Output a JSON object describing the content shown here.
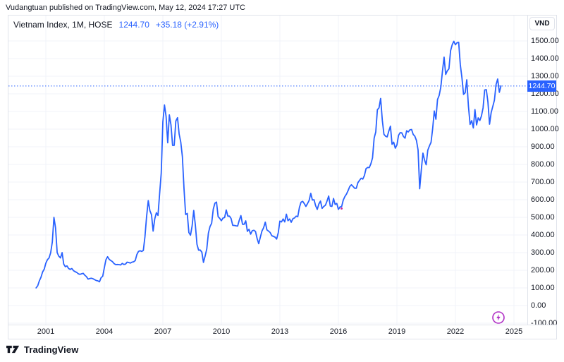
{
  "attribution": "Vudangtuan published on TradingView.com, May 12, 2024 17:27 UTC",
  "legend": {
    "title": "Vietnam Index, 1M, HOSE",
    "last_price": "1244.70",
    "change": "+35.18 (+2.91%)"
  },
  "currency_button_label": "VND",
  "price_axis": {
    "labels": [
      "1500.00",
      "1400.00",
      "1300.00",
      "1200.00",
      "1100.00",
      "1000.00",
      "900.00",
      "800.00",
      "700.00",
      "600.00",
      "500.00",
      "400.00",
      "300.00",
      "200.00",
      "100.00",
      "0.00",
      "-100.00"
    ],
    "current_price_label": "1244.70"
  },
  "time_axis": {
    "labels": [
      "2001",
      "2004",
      "2007",
      "2010",
      "2013",
      "2016",
      "2019",
      "2022",
      "2025"
    ]
  },
  "footer": {
    "brand": "TradingView"
  },
  "icons": {
    "flash": "lightning-icon",
    "logo": "tradingview-logo-icon"
  },
  "colors": {
    "accent_blue": "#2962FF",
    "text_dark": "#131722",
    "grid": "#F0F3FA",
    "border": "#E0E3EB",
    "flash_purple": "#B02FC5",
    "marker_pink": "#CC2B9E"
  },
  "chart_data": {
    "type": "line",
    "title": "Vietnam Index, 1M, HOSE",
    "ylabel": "VND",
    "legend_position": "top-left",
    "grid": true,
    "start": "2000-07",
    "interval": "1M",
    "x_tick_years": [
      2001,
      2004,
      2007,
      2010,
      2013,
      2016,
      2019,
      2022,
      2025
    ],
    "y_range": [
      -100,
      1500
    ],
    "y_step": 100,
    "current_price": 1244.7,
    "series": [
      {
        "name": "Vietnam Index",
        "values": [
          100,
          112,
          140,
          160,
          190,
          206,
          240,
          260,
          270,
          300,
          360,
          500,
          440,
          300,
          280,
          270,
          300,
          235,
          220,
          225,
          210,
          205,
          210,
          198,
          192,
          188,
          180,
          177,
          180,
          183,
          172,
          164,
          150,
          153,
          155,
          152,
          147,
          142,
          140,
          135,
          158,
          166,
          215,
          260,
          277,
          262,
          255,
          249,
          238,
          232,
          233,
          232,
          230,
          239,
          233,
          235,
          246,
          244,
          241,
          246,
          248,
          255,
          289,
          307,
          311,
          307,
          312,
          390,
          503,
          595,
          538,
          515,
          422,
          491,
          526,
          511,
          633,
          751,
          1041,
          1137,
          1071,
          923,
          1081,
          1024,
          908,
          908,
          1046,
          1065,
          972,
          927,
          844,
          663,
          516,
          522,
          414,
          399,
          451,
          539,
          456,
          347,
          314,
          315,
          303,
          245,
          280,
          321,
          411,
          448,
          466,
          546,
          580,
          587,
          504,
          494,
          481,
          496,
          499,
          542,
          507,
          507,
          493,
          455,
          454,
          452,
          451,
          484,
          510,
          461,
          461,
          480,
          421,
          432,
          405,
          424,
          427,
          420,
          380,
          351,
          388,
          423,
          441,
          473,
          429,
          422,
          414,
          396,
          392,
          388,
          377,
          413,
          479,
          474,
          491,
          474,
          518,
          481,
          491,
          472,
          492,
          497,
          507,
          504,
          556,
          586,
          591,
          578,
          562,
          578,
          596,
          636,
          598,
          600,
          566,
          545,
          576,
          592,
          551,
          562,
          569,
          593,
          621,
          564,
          562,
          607,
          573,
          579,
          545,
          559,
          561,
          598,
          618,
          632,
          652,
          675,
          685,
          675,
          665,
          665,
          697,
          710,
          722,
          717,
          737,
          776,
          783,
          782,
          804,
          837,
          949,
          984,
          1110,
          1121,
          1174,
          1050,
          971,
          960,
          956,
          989,
          1017,
          914,
          926,
          892,
          910,
          965,
          980,
          979,
          959,
          949,
          991,
          984,
          996,
          998,
          970,
          960,
          936,
          882,
          662,
          769,
          864,
          825,
          798,
          881,
          905,
          925,
          1003,
          1103,
          1056,
          1168,
          1191,
          1239,
          1328,
          1408,
          1310,
          1331,
          1342,
          1444,
          1478,
          1498,
          1478,
          1490,
          1492,
          1366,
          1292,
          1197,
          1206,
          1280,
          1132,
          1027,
          1048,
          1007,
          1111,
          1024,
          1064,
          1049,
          1075,
          1120,
          1222,
          1224,
          1154,
          1028,
          1094,
          1129,
          1164,
          1252,
          1284,
          1209,
          1244.7
        ]
      }
    ]
  }
}
